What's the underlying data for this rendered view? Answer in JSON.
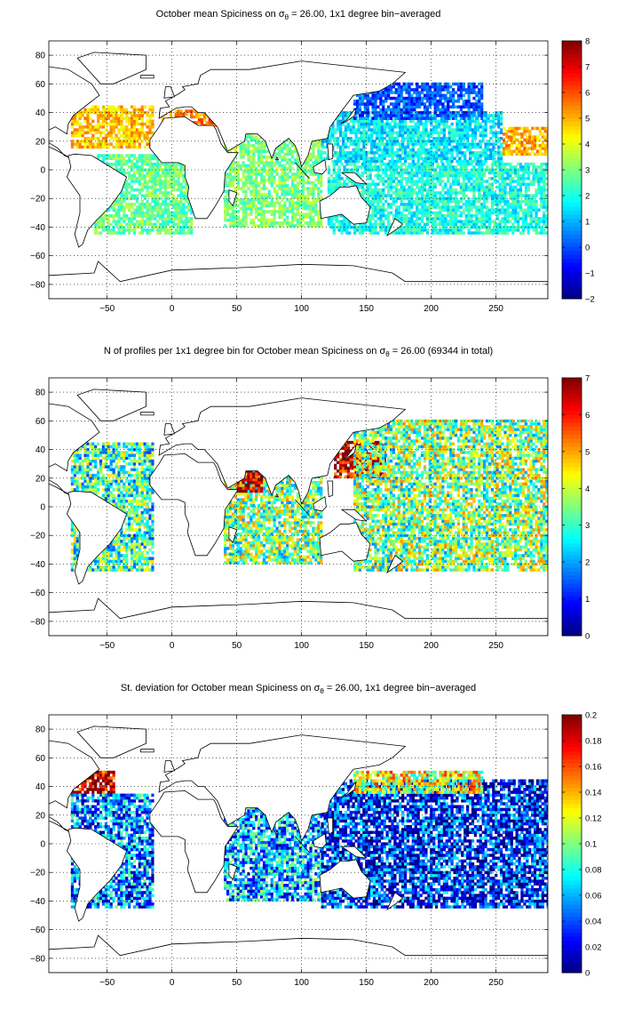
{
  "chart_data": [
    {
      "type": "heatmap",
      "title_parts": [
        "October mean Spiciness on ",
        "σ",
        "θ",
        " = 26.00, 1x1 degree bin−averaged"
      ],
      "x_ticks": [
        -50,
        0,
        50,
        100,
        150,
        200,
        250
      ],
      "y_ticks": [
        -80,
        -60,
        -40,
        -20,
        0,
        20,
        40,
        60,
        80
      ],
      "xlim": [
        -95,
        290
      ],
      "ylim": [
        -90,
        90
      ],
      "grid": "dotted",
      "colorbar": {
        "min": -2,
        "max": 8,
        "ticks": [
          -2,
          -1,
          0,
          1,
          2,
          3,
          4,
          5,
          6,
          7,
          8
        ],
        "colormap": "jet"
      },
      "regions": [
        {
          "x": [
            -78,
            -15
          ],
          "y": [
            15,
            45
          ],
          "value": 4.8
        },
        {
          "x": [
            -10,
            40
          ],
          "y": [
            30,
            42
          ],
          "value": 5.5
        },
        {
          "x": [
            -60,
            15
          ],
          "y": [
            -45,
            10
          ],
          "value": 2.8
        },
        {
          "x": [
            40,
            115
          ],
          "y": [
            -40,
            25
          ],
          "value": 3.0
        },
        {
          "x": [
            115,
            255
          ],
          "y": [
            5,
            40
          ],
          "value": 1.6
        },
        {
          "x": [
            140,
            240
          ],
          "y": [
            35,
            60
          ],
          "value": 0.1
        },
        {
          "x": [
            120,
            290
          ],
          "y": [
            -45,
            5
          ],
          "value": 2.0
        },
        {
          "x": [
            255,
            290
          ],
          "y": [
            10,
            30
          ],
          "value": 5.0
        }
      ]
    },
    {
      "type": "heatmap",
      "title_parts": [
        "N of profiles per 1x1 degree bin for October mean Spiciness on ",
        "σ",
        "θ",
        " = 26.00 (69344 in total)"
      ],
      "x_ticks": [
        -50,
        0,
        50,
        100,
        150,
        200,
        250
      ],
      "y_ticks": [
        -80,
        -60,
        -40,
        -20,
        0,
        20,
        40,
        60,
        80
      ],
      "xlim": [
        -95,
        290
      ],
      "ylim": [
        -90,
        90
      ],
      "grid": "dotted",
      "colorbar": {
        "min": 0,
        "max": 7,
        "ticks": [
          0,
          1,
          2,
          3,
          4,
          5,
          6,
          7
        ],
        "colormap": "jet"
      },
      "regions": [
        {
          "x": [
            -78,
            -15
          ],
          "y": [
            -45,
            45
          ],
          "value": 3.0
        },
        {
          "x": [
            40,
            115
          ],
          "y": [
            -40,
            25
          ],
          "value": 3.5
        },
        {
          "x": [
            125,
            165
          ],
          "y": [
            20,
            45
          ],
          "value": 6.8
        },
        {
          "x": [
            50,
            70
          ],
          "y": [
            10,
            25
          ],
          "value": 6.5
        },
        {
          "x": [
            140,
            290
          ],
          "y": [
            -45,
            60
          ],
          "value": 3.5
        }
      ]
    },
    {
      "type": "heatmap",
      "title_parts": [
        "St. deviation for October mean Spiciness on ",
        "σ",
        "θ",
        " = 26.00, 1x1 degree bin−averaged"
      ],
      "x_ticks": [
        -50,
        0,
        50,
        100,
        150,
        200,
        250
      ],
      "y_ticks": [
        -80,
        -60,
        -40,
        -20,
        0,
        20,
        40,
        60,
        80
      ],
      "xlim": [
        -95,
        290
      ],
      "ylim": [
        -90,
        90
      ],
      "grid": "dotted",
      "colorbar": {
        "min": 0,
        "max": 0.2,
        "ticks": [
          0,
          0.02,
          0.04,
          0.06,
          0.08,
          0.1,
          0.12,
          0.14,
          0.16,
          0.18,
          0.2
        ],
        "colormap": "jet"
      },
      "regions": [
        {
          "x": [
            -80,
            -45
          ],
          "y": [
            35,
            50
          ],
          "value": 0.19
        },
        {
          "x": [
            -78,
            -15
          ],
          "y": [
            -45,
            35
          ],
          "value": 0.05
        },
        {
          "x": [
            40,
            115
          ],
          "y": [
            -40,
            25
          ],
          "value": 0.06
        },
        {
          "x": [
            115,
            290
          ],
          "y": [
            -45,
            45
          ],
          "value": 0.03
        },
        {
          "x": [
            140,
            240
          ],
          "y": [
            35,
            50
          ],
          "value": 0.12
        }
      ]
    }
  ]
}
